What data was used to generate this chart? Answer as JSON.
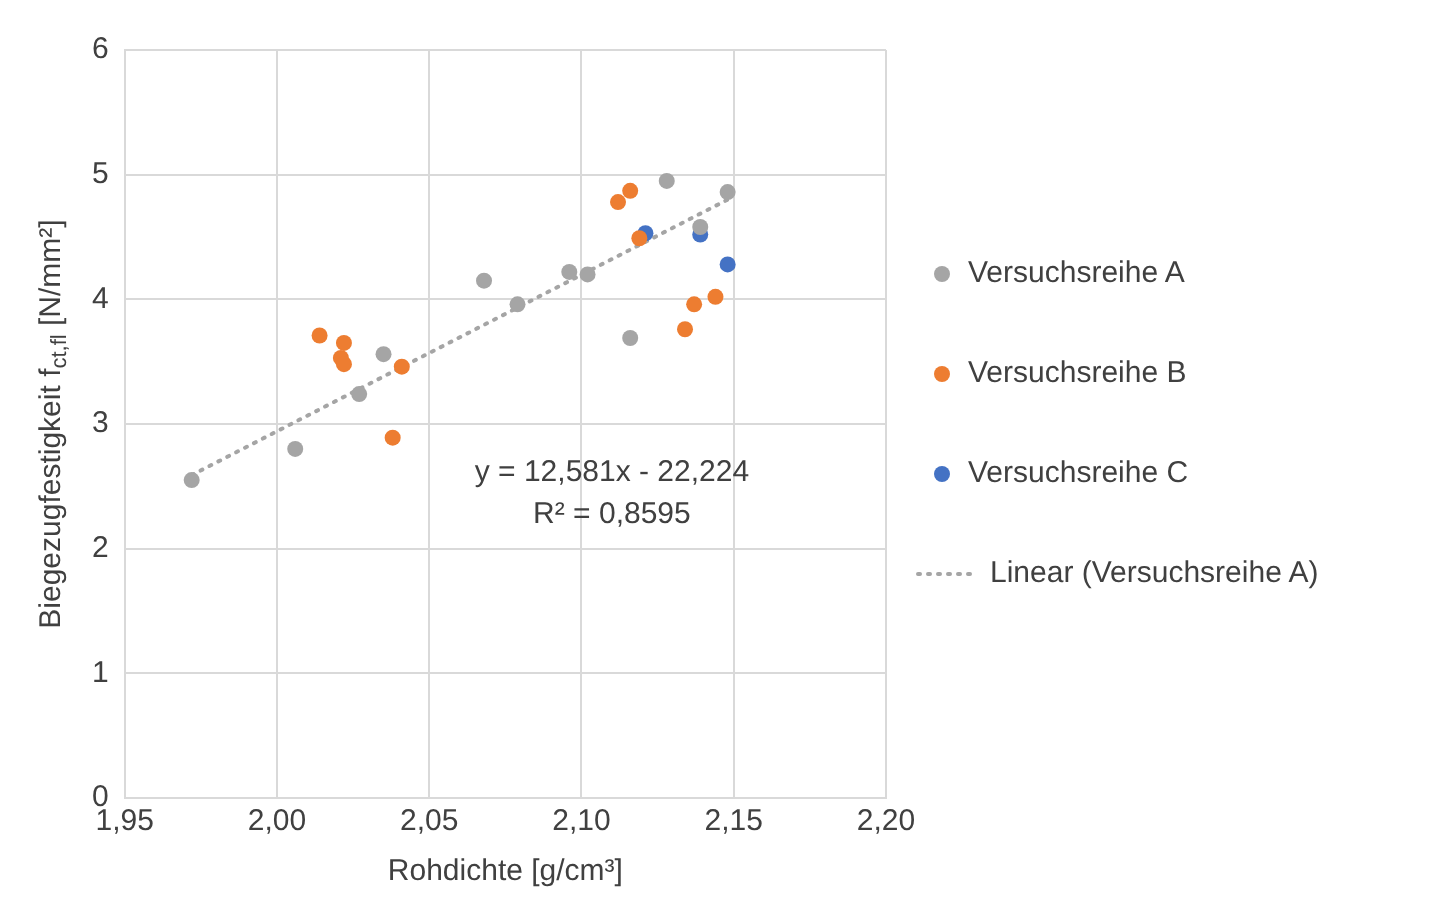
{
  "chart_data": {
    "type": "scatter",
    "xlabel": "Rohdichte [g/cm³]",
    "ylabel": "Biegezugfestigkeit f$_{ct,fl}$ [N/mm²]",
    "xlim": [
      1.95,
      2.2
    ],
    "ylim": [
      0,
      6
    ],
    "xticks": [
      {
        "value": 1.95,
        "label": "1,95"
      },
      {
        "value": 2.0,
        "label": "2,00"
      },
      {
        "value": 2.05,
        "label": "2,05"
      },
      {
        "value": 2.1,
        "label": "2,10"
      },
      {
        "value": 2.15,
        "label": "2,15"
      },
      {
        "value": 2.2,
        "label": "2,20"
      }
    ],
    "yticks": [
      0,
      1,
      2,
      3,
      4,
      5,
      6
    ],
    "grid": true,
    "legend": "right",
    "marker": "circle",
    "series": [
      {
        "name": "Versuchsreihe A",
        "color": "#a5a5a5",
        "x": [
          1.972,
          2.006,
          2.027,
          2.035,
          2.068,
          2.079,
          2.096,
          2.102,
          2.116,
          2.128,
          2.148,
          2.139
        ],
        "values": [
          2.55,
          2.8,
          3.24,
          3.56,
          4.15,
          3.96,
          4.22,
          4.2,
          3.69,
          4.95,
          4.86,
          4.58
        ]
      },
      {
        "name": "Versuchsreihe B",
        "color": "#ed7d31",
        "x": [
          2.014,
          2.022,
          2.021,
          2.022,
          2.041,
          2.038,
          2.116,
          2.112,
          2.119,
          2.137,
          2.144,
          2.134
        ],
        "values": [
          3.71,
          3.65,
          3.53,
          3.48,
          3.46,
          2.89,
          4.87,
          4.78,
          4.49,
          3.96,
          4.02,
          3.76
        ]
      },
      {
        "name": "Versuchsreihe C",
        "color": "#4472c4",
        "x": [
          2.121,
          2.139,
          2.148
        ],
        "values": [
          4.53,
          4.52,
          4.28
        ]
      },
      {
        "name": "Linear (Versuchsreihe A)",
        "type": "line",
        "color": "#a5a5a5",
        "line_style": "dotted",
        "marker": "none",
        "x": [
          1.972,
          2.148
        ],
        "values": [
          2.59,
          4.8
        ]
      }
    ],
    "annotations": [
      "y = 12,581x - 22,224",
      "R² = 0,8595"
    ]
  }
}
